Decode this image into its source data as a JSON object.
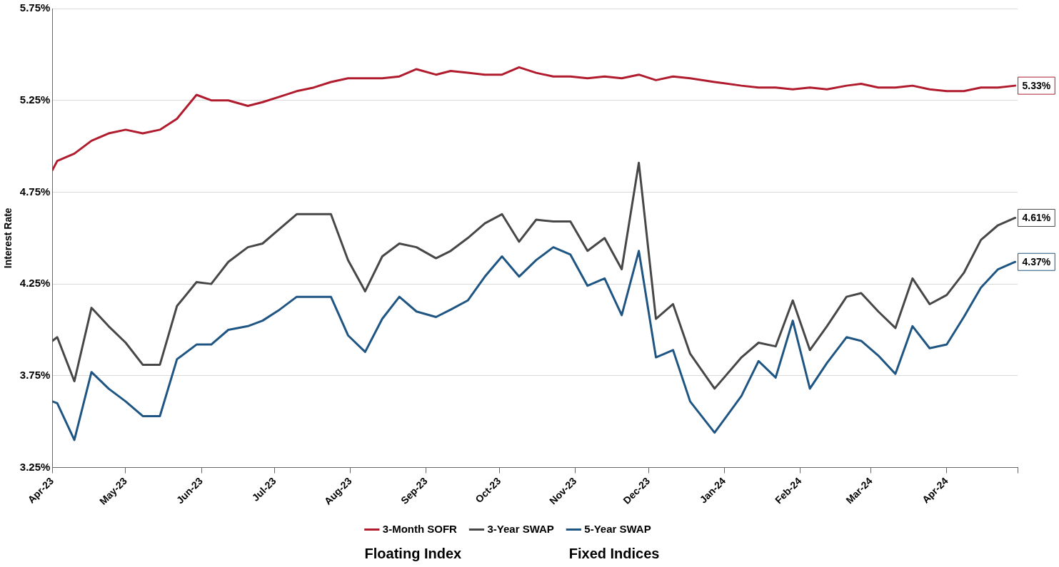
{
  "chart_data": {
    "type": "line",
    "ylabel": "Interest Rate",
    "legend": "bottom",
    "grid": "y",
    "marker": "none",
    "line_style": "solid",
    "x": [
      "2023-04-01",
      "2023-04-03",
      "2023-04-10",
      "2023-04-17",
      "2023-04-24",
      "2023-05-01",
      "2023-05-08",
      "2023-05-15",
      "2023-05-22",
      "2023-05-30",
      "2023-06-05",
      "2023-06-12",
      "2023-06-20",
      "2023-06-26",
      "2023-07-03",
      "2023-07-10",
      "2023-07-17",
      "2023-07-24",
      "2023-07-31",
      "2023-08-07",
      "2023-08-14",
      "2023-08-21",
      "2023-08-28",
      "2023-09-05",
      "2023-09-11",
      "2023-09-18",
      "2023-09-25",
      "2023-10-02",
      "2023-10-09",
      "2023-10-16",
      "2023-10-23",
      "2023-10-30",
      "2023-11-06",
      "2023-11-13",
      "2023-11-20",
      "2023-11-27",
      "2023-12-04",
      "2023-12-11",
      "2023-12-18",
      "2023-12-28",
      "2024-01-08",
      "2024-01-15",
      "2024-01-22",
      "2024-01-29",
      "2024-02-05",
      "2024-02-12",
      "2024-02-20",
      "2024-02-26",
      "2024-03-04",
      "2024-03-11",
      "2024-03-18",
      "2024-03-25",
      "2024-04-01",
      "2024-04-08",
      "2024-04-15",
      "2024-04-22",
      "2024-04-29"
    ],
    "xlim": [
      "2023-04-01",
      "2024-04-30"
    ],
    "xticks": [
      {
        "value": "2023-04-01",
        "label": "Apr-23"
      },
      {
        "value": "2023-05-01",
        "label": "May-23"
      },
      {
        "value": "2023-06-01",
        "label": "Jun-23"
      },
      {
        "value": "2023-07-01",
        "label": "Jul-23"
      },
      {
        "value": "2023-08-01",
        "label": "Aug-23"
      },
      {
        "value": "2023-09-01",
        "label": "Sep-23"
      },
      {
        "value": "2023-10-01",
        "label": "Oct-23"
      },
      {
        "value": "2023-11-01",
        "label": "Nov-23"
      },
      {
        "value": "2023-12-01",
        "label": "Dec-23"
      },
      {
        "value": "2024-01-01",
        "label": "Jan-24"
      },
      {
        "value": "2024-02-01",
        "label": "Feb-24"
      },
      {
        "value": "2024-03-01",
        "label": "Mar-24"
      },
      {
        "value": "2024-04-01",
        "label": "Apr-24"
      },
      {
        "value": "2024-04-30",
        "label": null
      }
    ],
    "ylim": [
      3.25,
      5.75
    ],
    "yticks": [
      {
        "value": 3.25,
        "label": "3.25%"
      },
      {
        "value": 3.75,
        "label": "3.75%"
      },
      {
        "value": 4.25,
        "label": "4.25%"
      },
      {
        "value": 4.75,
        "label": "4.75%"
      },
      {
        "value": 5.25,
        "label": "5.25%"
      },
      {
        "value": 5.75,
        "label": "5.75%"
      }
    ],
    "series": [
      {
        "name": "3-Month SOFR",
        "color": "#b01c2e",
        "values": [
          4.87,
          4.92,
          4.96,
          5.03,
          5.07,
          5.09,
          5.07,
          5.09,
          5.15,
          5.28,
          5.25,
          5.25,
          5.22,
          5.24,
          5.27,
          5.3,
          5.32,
          5.35,
          5.37,
          5.37,
          5.37,
          5.38,
          5.42,
          5.39,
          5.41,
          5.4,
          5.39,
          5.39,
          5.43,
          5.4,
          5.38,
          5.38,
          5.37,
          5.38,
          5.37,
          5.39,
          5.36,
          5.38,
          5.37,
          5.35,
          5.33,
          5.32,
          5.32,
          5.31,
          5.32,
          5.31,
          5.33,
          5.34,
          5.32,
          5.32,
          5.33,
          5.31,
          5.3,
          5.3,
          5.32,
          5.32,
          5.33
        ],
        "value_labels": [
          null,
          null,
          null,
          null,
          null,
          null,
          null,
          null,
          null,
          null,
          null,
          null,
          null,
          null,
          null,
          null,
          null,
          null,
          null,
          null,
          null,
          null,
          null,
          null,
          null,
          null,
          null,
          null,
          null,
          null,
          null,
          null,
          null,
          null,
          null,
          null,
          null,
          null,
          null,
          null,
          null,
          null,
          null,
          null,
          null,
          null,
          null,
          null,
          null,
          null,
          null,
          null,
          null,
          null,
          null,
          null,
          "5.33%"
        ]
      },
      {
        "name": "3-Year SWAP",
        "color": "#474747",
        "values": [
          3.94,
          3.96,
          3.72,
          4.12,
          4.02,
          3.93,
          3.81,
          3.81,
          4.13,
          4.26,
          4.25,
          4.37,
          4.45,
          4.47,
          4.55,
          4.63,
          4.63,
          4.63,
          4.38,
          4.21,
          4.4,
          4.47,
          4.45,
          4.39,
          4.43,
          4.5,
          4.58,
          4.63,
          4.48,
          4.6,
          4.59,
          4.59,
          4.43,
          4.5,
          4.33,
          4.91,
          4.06,
          4.14,
          3.87,
          3.68,
          3.85,
          3.93,
          3.91,
          4.16,
          3.89,
          4.02,
          4.18,
          4.2,
          4.1,
          4.01,
          4.28,
          4.14,
          4.19,
          4.31,
          4.49,
          4.57,
          4.61
        ],
        "value_labels": [
          null,
          null,
          null,
          null,
          null,
          null,
          null,
          null,
          null,
          null,
          null,
          null,
          null,
          null,
          null,
          null,
          null,
          null,
          null,
          null,
          null,
          null,
          null,
          null,
          null,
          null,
          null,
          null,
          null,
          null,
          null,
          null,
          null,
          null,
          null,
          null,
          null,
          null,
          null,
          null,
          null,
          null,
          null,
          null,
          null,
          null,
          null,
          null,
          null,
          null,
          null,
          null,
          null,
          null,
          null,
          null,
          "4.61%"
        ]
      },
      {
        "name": "5-Year SWAP",
        "color": "#1f5582",
        "values": [
          3.61,
          3.6,
          3.4,
          3.77,
          3.68,
          3.61,
          3.53,
          3.53,
          3.84,
          3.92,
          3.92,
          4.0,
          4.02,
          4.05,
          4.11,
          4.18,
          4.18,
          4.18,
          3.97,
          3.88,
          4.06,
          4.18,
          4.1,
          4.07,
          4.11,
          4.16,
          4.29,
          4.4,
          4.29,
          4.38,
          4.45,
          4.41,
          4.24,
          4.28,
          4.08,
          4.43,
          3.85,
          3.89,
          3.61,
          3.44,
          3.64,
          3.83,
          3.74,
          4.05,
          3.68,
          3.82,
          3.96,
          3.94,
          3.86,
          3.76,
          4.02,
          3.9,
          3.92,
          4.07,
          4.23,
          4.33,
          4.37
        ],
        "value_labels": [
          null,
          null,
          null,
          null,
          null,
          null,
          null,
          null,
          null,
          null,
          null,
          null,
          null,
          null,
          null,
          null,
          null,
          null,
          null,
          null,
          null,
          null,
          null,
          null,
          null,
          null,
          null,
          null,
          null,
          null,
          null,
          null,
          null,
          null,
          null,
          null,
          null,
          null,
          null,
          null,
          null,
          null,
          null,
          null,
          null,
          null,
          null,
          null,
          null,
          null,
          null,
          null,
          null,
          null,
          null,
          null,
          "4.37%"
        ]
      }
    ],
    "annotations": [
      "Floating Index",
      "Fixed Indices"
    ]
  }
}
